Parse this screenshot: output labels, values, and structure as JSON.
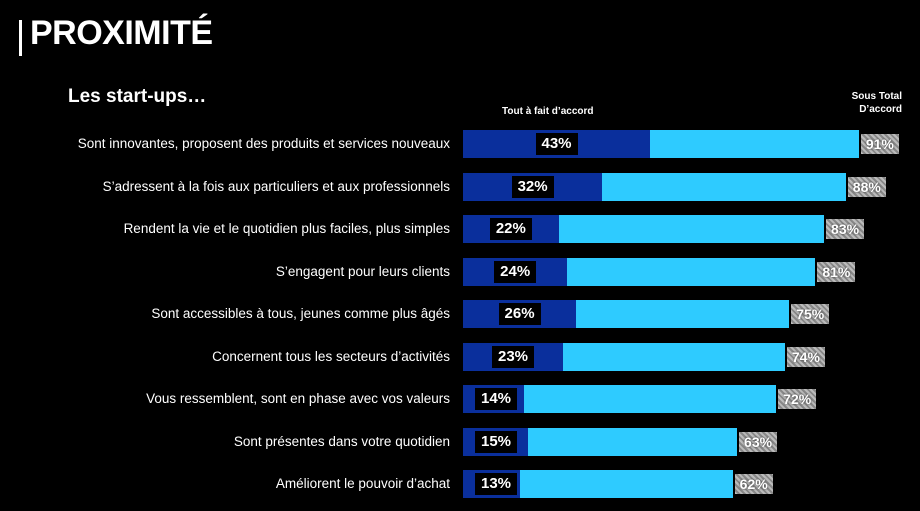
{
  "chart_data": {
    "type": "bar",
    "orientation": "horizontal",
    "overlap": true,
    "title": "PROXIMITÉ",
    "subtitle": "Les start-ups…",
    "categories": [
      "Sont innovantes, proposent des produits et services nouveaux",
      "S’adressent à la fois aux particuliers et aux professionnels",
      "Rendent la vie et le quotidien plus faciles, plus simples",
      "S’engagent pour leurs clients",
      "Sont accessibles à tous, jeunes comme plus âgés",
      "Concernent tous les secteurs d’activités",
      "Vous ressemblent, sont en phase avec vos valeurs",
      "Sont présentes dans votre quotidien",
      "Améliorent le pouvoir d’achat"
    ],
    "series": [
      {
        "name": "Sous Total D’accord",
        "color": "#2ecbff",
        "values": [
          91,
          88,
          83,
          81,
          75,
          74,
          72,
          63,
          62
        ],
        "value_labels": [
          "91%",
          "88%",
          "83%",
          "81%",
          "75%",
          "74%",
          "72%",
          "63%",
          "62%"
        ]
      },
      {
        "name": "Tout à fait d’accord",
        "color": "#0a2f9c",
        "values": [
          43,
          32,
          22,
          24,
          26,
          23,
          14,
          15,
          13
        ],
        "value_labels": [
          "43%",
          "32%",
          "22%",
          "24%",
          "26%",
          "23%",
          "14%",
          "15%",
          "13%"
        ]
      }
    ]
  }
}
